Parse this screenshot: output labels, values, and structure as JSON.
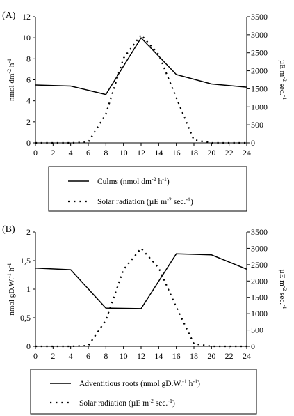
{
  "chart_data": [
    {
      "type": "line",
      "panel_label": "(A)",
      "x": [
        0,
        4,
        8,
        12,
        16,
        20,
        24
      ],
      "xlim": [
        0,
        24
      ],
      "x_ticks": [
        "0",
        "2",
        "4",
        "6",
        "8",
        "10",
        "12",
        "14",
        "16",
        "18",
        "20",
        "22",
        "24"
      ],
      "ylim_left": [
        0,
        12
      ],
      "y_ticks_left": [
        "0",
        "2",
        "4",
        "6",
        "8",
        "10",
        "12"
      ],
      "ylim_right": [
        0,
        3500
      ],
      "y_ticks_right": [
        "0",
        "500",
        "1000",
        "1500",
        "2000",
        "2500",
        "3000",
        "3500"
      ],
      "ylabel_left": {
        "base": "nmol dm",
        "sup1": "-2",
        "mid": " h",
        "sup2": "-1"
      },
      "ylabel_right": {
        "base": "µE m",
        "sup1": "-2",
        "mid": " sec.",
        "sup2": "-1"
      },
      "series": [
        {
          "name": "Culms (nmol dm-2 h-1)",
          "axis": "left",
          "style": "solid",
          "x": [
            0,
            4,
            8,
            12,
            16,
            20,
            24
          ],
          "values": [
            5.5,
            5.4,
            4.6,
            10.0,
            6.5,
            5.6,
            5.3
          ]
        },
        {
          "name": "Solar radiation (µE m-2 sec.-1)",
          "axis": "right",
          "style": "dotted",
          "x": [
            0,
            2,
            4,
            6,
            8,
            10,
            12,
            14,
            16,
            18,
            20,
            22,
            24
          ],
          "values": [
            0,
            0,
            0,
            20,
            800,
            2350,
            3000,
            2450,
            1250,
            80,
            0,
            0,
            0
          ]
        }
      ],
      "legend": [
        {
          "style": "solid",
          "pre": "Culms (nmol dm",
          "s1": "-2",
          "mid": " h",
          "s2": "-1",
          "post": ")"
        },
        {
          "style": "dotted",
          "pre": "Solar radiation (µE m",
          "s1": "-2",
          "mid": " sec.",
          "s2": "-1",
          "post": ")"
        }
      ]
    },
    {
      "type": "line",
      "panel_label": "(B)",
      "x": [
        0,
        4,
        8,
        12,
        16,
        20,
        24
      ],
      "xlim": [
        0,
        24
      ],
      "x_ticks": [
        "0",
        "2",
        "4",
        "6",
        "8",
        "10",
        "12",
        "14",
        "16",
        "18",
        "20",
        "22",
        "24"
      ],
      "ylim_left": [
        0,
        2
      ],
      "y_ticks_left": [
        "0",
        "0,5",
        "1",
        "1,5",
        "2"
      ],
      "ylim_right": [
        0,
        3500
      ],
      "y_ticks_right": [
        "0",
        "500",
        "1000",
        "1500",
        "2000",
        "2500",
        "3000",
        "3500"
      ],
      "ylabel_left": {
        "base": "nmol gD.W.",
        "sup1": "-1",
        "mid": " h",
        "sup2": "-1"
      },
      "ylabel_right": {
        "base": "µE m",
        "sup1": "-2",
        "mid": " sec.",
        "sup2": "-1"
      },
      "series": [
        {
          "name": "Adventitious roots (nmol gD.W.-1 h-1)",
          "axis": "left",
          "style": "solid",
          "x": [
            0,
            4,
            8,
            12,
            16,
            20,
            24
          ],
          "values": [
            1.37,
            1.34,
            0.67,
            0.66,
            1.62,
            1.6,
            1.35
          ]
        },
        {
          "name": "Solar radiation (µE m-2 sec.-1)",
          "axis": "right",
          "style": "dotted",
          "x": [
            0,
            2,
            4,
            6,
            8,
            10,
            12,
            14,
            16,
            18,
            20,
            22,
            24
          ],
          "values": [
            0,
            0,
            0,
            20,
            800,
            2350,
            3000,
            2400,
            1200,
            80,
            0,
            0,
            0
          ]
        }
      ],
      "legend": [
        {
          "style": "solid",
          "pre": "Adventitious roots (nmol gD.W.",
          "s1": "-1",
          "mid": " h",
          "s2": "-1",
          "post": ")"
        },
        {
          "style": "dotted",
          "pre": "Solar radiation (µE m",
          "s1": "-2",
          "mid": " sec.",
          "s2": "-1",
          "post": ")"
        }
      ]
    }
  ]
}
